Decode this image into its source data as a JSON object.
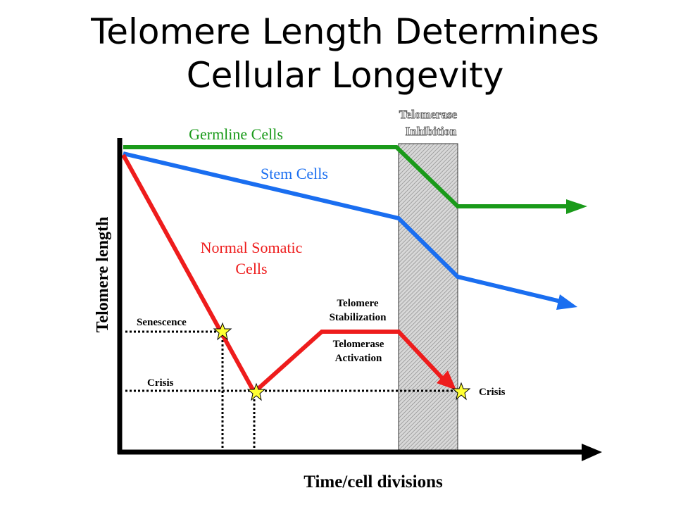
{
  "title": {
    "line1": "Telomere Length Determines",
    "line2": "Cellular Longevity"
  },
  "axes": {
    "y_label": "Telomere length",
    "x_label": "Time/cell divisions"
  },
  "curves": {
    "germline": {
      "label": "Germline Cells",
      "color": "#1a9a1a"
    },
    "stem": {
      "label": "Stem Cells",
      "color": "#1a6ef0"
    },
    "somatic": {
      "label_line1": "Normal Somatic",
      "label_line2": "Cells",
      "color": "#ee1c1c"
    }
  },
  "annotations": {
    "senescence": "Senescence",
    "crisis_left": "Crisis",
    "crisis_right": "Crisis",
    "stabilization_line1": "Telomere",
    "stabilization_line2": "Stabilization",
    "activation_line1": "Telomerase",
    "activation_line2": "Activation"
  },
  "inhibition": {
    "label_line1": "Telomerase",
    "label_line2": "Inhibition"
  },
  "colors": {
    "axis": "#000000",
    "star_fill": "#ffff33",
    "hatch": "#9a9a9a"
  }
}
